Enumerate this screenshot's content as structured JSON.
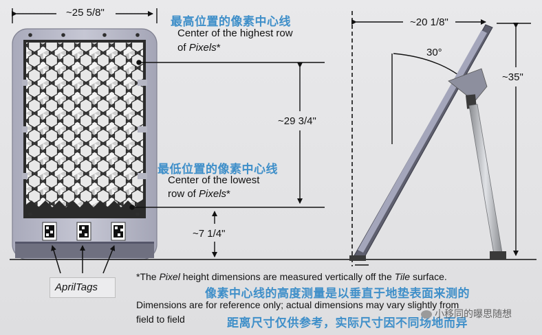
{
  "dimensions": {
    "panel_width": "~25 5/8\"",
    "top_depth": "~20 1/8\"",
    "pixel_span": "~29 3/4\"",
    "total_height": "~35\"",
    "bottom_offset": "~7 1/4\"",
    "tilt_angle": "30°"
  },
  "labels": {
    "highest_cn": "最高位置的像素中心线",
    "highest_en_line1": "Center of the highest row",
    "highest_en_line2_italic": "Pixels",
    "highest_en_line2_prefix": "of ",
    "highest_en_line2_suffix": "*",
    "lowest_cn": "最低位置的像素中心线",
    "lowest_en_line1": "Center of the lowest",
    "lowest_en_line2_prefix": "row of ",
    "lowest_en_line2_italic": "Pixels",
    "lowest_en_line2_suffix": "*",
    "april_tags": "AprilTags"
  },
  "footnotes": {
    "note_prefix": "*The ",
    "note_pixel": "Pixel",
    "note_mid": " height dimensions are measured vertically off the ",
    "note_tile": "Tile",
    "note_suffix": " surface.",
    "note_cn": "像素中心线的高度测量是以垂直于地垫表面来测的",
    "reference_line1": "Dimensions are for reference only; actual dimensions may vary slightly from",
    "reference_line2": "field to field",
    "reference_cn": "距离尺寸仅供参考，实际尺寸因不同场地而异"
  },
  "watermark": {
    "text": "小移同的曝思随想"
  },
  "colors": {
    "annotation_blue": "#3f8fc9",
    "panel_frame": "#b9bac9",
    "panel_dark": "#2a2a2a"
  }
}
